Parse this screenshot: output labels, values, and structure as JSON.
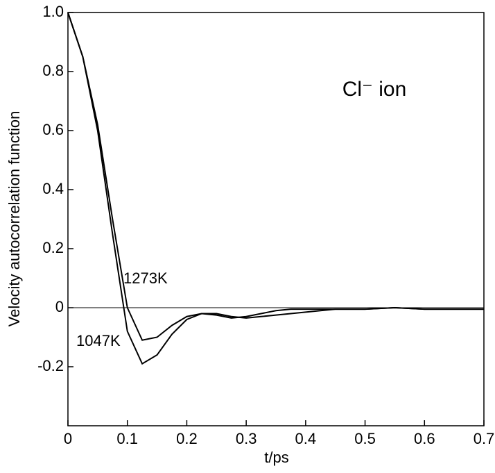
{
  "chart_data": {
    "type": "line",
    "annotation": "Cl⁻ ion",
    "xlabel": "t/ps",
    "ylabel": "Velocity autocorrelation function",
    "x": [
      0,
      0.025,
      0.05,
      0.075,
      0.1,
      0.125,
      0.15,
      0.175,
      0.2,
      0.225,
      0.25,
      0.275,
      0.3,
      0.325,
      0.35,
      0.375,
      0.4,
      0.45,
      0.5,
      0.55,
      0.6,
      0.65,
      0.7
    ],
    "series": [
      {
        "name": "1273K",
        "color": "#000000",
        "values": [
          1.0,
          0.85,
          0.62,
          0.3,
          0.0,
          -0.11,
          -0.1,
          -0.06,
          -0.03,
          -0.02,
          -0.025,
          -0.035,
          -0.03,
          -0.02,
          -0.01,
          -0.005,
          -0.005,
          -0.005,
          -0.005,
          0,
          -0.005,
          -0.005,
          -0.005
        ]
      },
      {
        "name": "1047K",
        "color": "#000000",
        "values": [
          1.0,
          0.85,
          0.6,
          0.25,
          -0.08,
          -0.19,
          -0.16,
          -0.09,
          -0.04,
          -0.02,
          -0.02,
          -0.03,
          -0.035,
          -0.03,
          -0.025,
          -0.02,
          -0.015,
          -0.005,
          -0.005,
          0,
          -0.005,
          -0.005,
          -0.005
        ]
      }
    ],
    "xlim": [
      0,
      0.7
    ],
    "xticks": [
      0,
      0.1,
      0.2,
      0.3,
      0.4,
      0.5,
      0.6,
      0.7
    ],
    "ylim": [
      -0.4,
      1.0
    ],
    "yticks": [
      {
        "value": 1,
        "label": "1.0"
      },
      0.8,
      0.6,
      0.4,
      0.2,
      0,
      -0.2
    ],
    "zero_line": true
  }
}
